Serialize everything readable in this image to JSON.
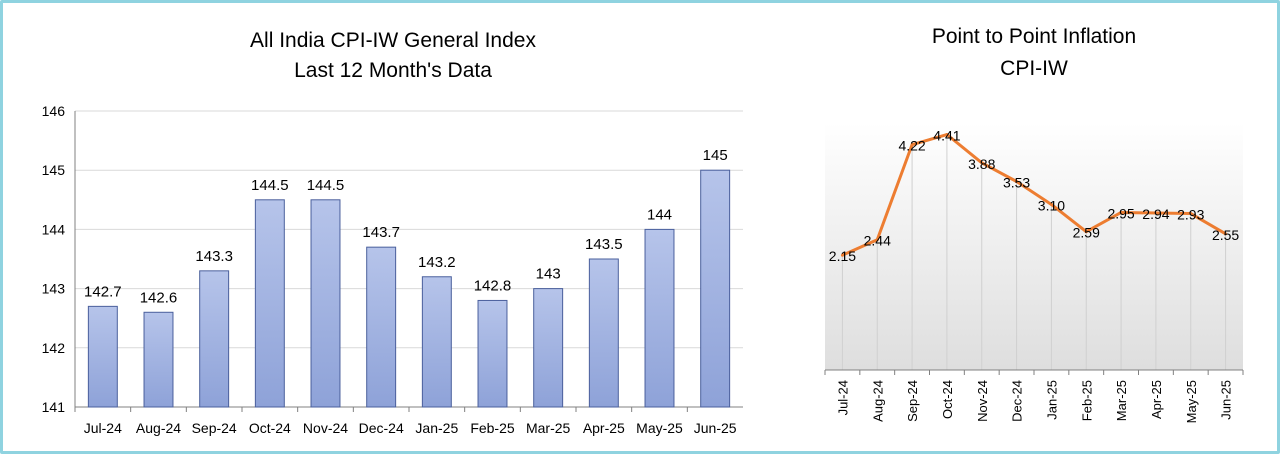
{
  "colors": {
    "frame": "#8fd3e0",
    "bar_fill_top": "#b6c4ea",
    "bar_fill_bottom": "#8ea2d8",
    "bar_stroke": "#4a5f9c",
    "line": "#ed7d31",
    "grid": "#d9d9d9",
    "axis": "#808080",
    "text": "#000000"
  },
  "chart_data": [
    {
      "type": "bar",
      "title": "All India CPI-IW General Index",
      "subtitle": "Last 12 Month's Data",
      "xlabel": "",
      "ylabel": "",
      "categories": [
        "Jul-24",
        "Aug-24",
        "Sep-24",
        "Oct-24",
        "Nov-24",
        "Dec-24",
        "Jan-25",
        "Feb-25",
        "Mar-25",
        "Apr-25",
        "May-25",
        "Jun-25"
      ],
      "values": [
        142.7,
        142.6,
        143.3,
        144.5,
        144.5,
        143.7,
        143.2,
        142.8,
        143,
        143.5,
        144,
        145
      ],
      "value_labels": [
        "142.7",
        "142.6",
        "143.3",
        "144.5",
        "144.5",
        "143.7",
        "143.2",
        "142.8",
        "143",
        "143.5",
        "144",
        "145"
      ],
      "ylim": [
        141,
        146
      ],
      "yticks": [
        "141",
        "142",
        "143",
        "144",
        "145",
        "146"
      ],
      "grid": true,
      "legend": "none"
    },
    {
      "type": "line",
      "title": "Point to Point Inflation",
      "subtitle": "CPI-IW",
      "xlabel": "",
      "ylabel": "",
      "categories": [
        "Jul-24",
        "Aug-24",
        "Sep-24",
        "Oct-24",
        "Nov-24",
        "Dec-24",
        "Jan-25",
        "Feb-25",
        "Mar-25",
        "Apr-25",
        "May-25",
        "Jun-25"
      ],
      "values": [
        2.15,
        2.44,
        4.22,
        4.41,
        3.88,
        3.53,
        3.1,
        2.59,
        2.95,
        2.94,
        2.93,
        2.55
      ],
      "value_labels": [
        "2.15",
        "2.44",
        "4.22",
        "4.41",
        "3.88",
        "3.53",
        "3.10",
        "2.59",
        "2.95",
        "2.94",
        "2.93",
        "2.55"
      ],
      "ylim": [
        0,
        5
      ],
      "x_tick_rotation": "vertical",
      "grid": false,
      "legend": "none"
    }
  ]
}
